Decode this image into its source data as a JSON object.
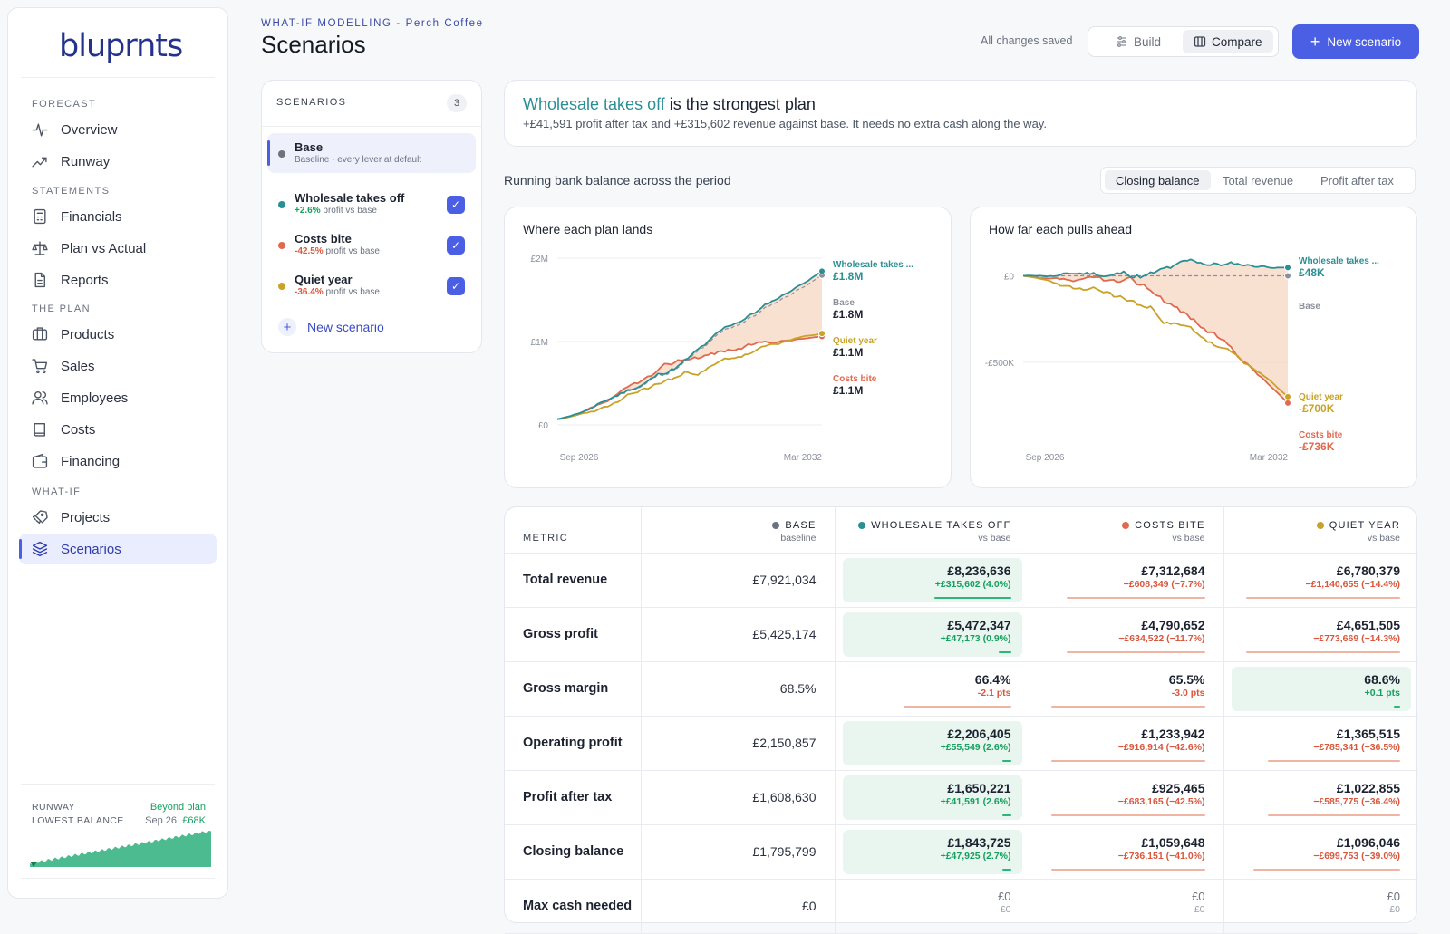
{
  "app": {
    "logo": "bluprnts"
  },
  "sidebar": {
    "sections": [
      {
        "label": "FORECAST",
        "items": [
          {
            "label": "Overview",
            "icon": "activity-icon"
          },
          {
            "label": "Runway",
            "icon": "trend-up-icon"
          }
        ]
      },
      {
        "label": "STATEMENTS",
        "items": [
          {
            "label": "Financials",
            "icon": "calculator-icon"
          },
          {
            "label": "Plan vs Actual",
            "icon": "scale-icon"
          },
          {
            "label": "Reports",
            "icon": "document-icon"
          }
        ]
      },
      {
        "label": "THE PLAN",
        "items": [
          {
            "label": "Products",
            "icon": "box-icon"
          },
          {
            "label": "Sales",
            "icon": "cart-icon"
          },
          {
            "label": "Employees",
            "icon": "users-icon"
          },
          {
            "label": "Costs",
            "icon": "book-icon"
          },
          {
            "label": "Financing",
            "icon": "wallet-icon"
          }
        ]
      },
      {
        "label": "WHAT-IF",
        "items": [
          {
            "label": "Projects",
            "icon": "rocket-icon"
          },
          {
            "label": "Scenarios",
            "icon": "layers-icon",
            "active": true
          }
        ]
      }
    ],
    "runway": {
      "label": "RUNWAY",
      "value": "Beyond plan",
      "lowest_label": "LOWEST BALANCE",
      "lowest_date": "Sep 26",
      "lowest_value": "£68K",
      "color": "#2fb47a"
    }
  },
  "header": {
    "eyebrow": "WHAT-IF MODELLING - Perch Coffee",
    "title": "Scenarios",
    "saved": "All changes saved",
    "build": "Build",
    "compare": "Compare",
    "new_scenario": "New scenario"
  },
  "scenarios": {
    "title": "SCENARIOS",
    "count": "3",
    "base": {
      "name": "Base",
      "sub": "Baseline · every lever at default",
      "color": "#6b7280"
    },
    "items": [
      {
        "name": "Wholesale takes off",
        "delta": "+2.6%",
        "sub": "profit vs base",
        "color": "#2a8f95",
        "dir": "pos"
      },
      {
        "name": "Costs bite",
        "delta": "-42.5%",
        "sub": "profit vs base",
        "color": "#e06a4e",
        "dir": "neg"
      },
      {
        "name": "Quiet year",
        "delta": "-36.4%",
        "sub": "profit vs base",
        "color": "#c9a227",
        "dir": "neg"
      }
    ],
    "new_label": "New scenario"
  },
  "banner": {
    "highlight": "Wholesale takes off",
    "rest": " is the strongest plan",
    "sub": "+£41,591 profit after tax and +£315,602 revenue against base. It needs no extra cash along the way."
  },
  "charts": {
    "caption": "Running bank balance across the period",
    "tabs": [
      "Closing balance",
      "Total revenue",
      "Profit after tax"
    ],
    "left": {
      "title": "Where each plan lands",
      "y_ticks": [
        "£2M",
        "£1M",
        "£0"
      ],
      "x_ticks": [
        "Sep 2026",
        "Mar 2032"
      ],
      "labels": [
        {
          "name": "Wholesale takes ...",
          "value": "£1.8M",
          "color": "#2a8f95"
        },
        {
          "name": "Base",
          "value": "£1.8M",
          "color": "#8b909c"
        },
        {
          "name": "Quiet year",
          "value": "£1.1M",
          "color": "#c9a227"
        },
        {
          "name": "Costs bite",
          "value": "£1.1M",
          "color": "#e06a4e"
        }
      ]
    },
    "right": {
      "title": "How far each pulls ahead",
      "y_ticks": [
        "£0",
        "-£500K"
      ],
      "x_ticks": [
        "Sep 2026",
        "Mar 2032"
      ],
      "labels": [
        {
          "name": "Wholesale takes ...",
          "value": "£48K",
          "color": "#2a8f95"
        },
        {
          "name": "Base",
          "value": "",
          "color": "#8b909c"
        },
        {
          "name": "Quiet year",
          "value": "-£700K",
          "color": "#c9a227"
        },
        {
          "name": "Costs bite",
          "value": "-£736K",
          "color": "#e06a4e"
        }
      ]
    }
  },
  "chart_data": [
    {
      "type": "line",
      "title": "Where each plan lands",
      "x": [
        "Sep 2026",
        "Mar 2032"
      ],
      "ylim": [
        0,
        2000000
      ],
      "series": [
        {
          "name": "Wholesale takes off",
          "values": [
            68000,
            1843725
          ]
        },
        {
          "name": "Base",
          "values": [
            68000,
            1795799
          ]
        },
        {
          "name": "Quiet year",
          "values": [
            68000,
            1096046
          ]
        },
        {
          "name": "Costs bite",
          "values": [
            68000,
            1059648
          ]
        }
      ]
    },
    {
      "type": "line",
      "title": "How far each pulls ahead",
      "x": [
        "Sep 2026",
        "Mar 2032"
      ],
      "ylim": [
        -800000,
        50000
      ],
      "series": [
        {
          "name": "Wholesale takes off",
          "values": [
            0,
            47925
          ]
        },
        {
          "name": "Base",
          "values": [
            0,
            0
          ]
        },
        {
          "name": "Quiet year",
          "values": [
            0,
            -699753
          ]
        },
        {
          "name": "Costs bite",
          "values": [
            0,
            -736151
          ]
        }
      ]
    }
  ],
  "table": {
    "metric_label": "METRIC",
    "columns": [
      {
        "name": "BASE",
        "sub": "baseline",
        "color": "#6b7280"
      },
      {
        "name": "WHOLESALE TAKES OFF",
        "sub": "vs base",
        "color": "#2a8f95"
      },
      {
        "name": "COSTS BITE",
        "sub": "vs base",
        "color": "#e06a4e"
      },
      {
        "name": "QUIET YEAR",
        "sub": "vs base",
        "color": "#c9a227"
      }
    ],
    "rows": [
      {
        "metric": "Total revenue",
        "base": "£7,921,034",
        "cells": [
          {
            "v": "£8,236,636",
            "d": "+£315,602 (4.0%)",
            "dir": "pos",
            "win": true,
            "bar": 0.5
          },
          {
            "v": "£7,312,684",
            "d": "−£608,349 (−7.7%)",
            "dir": "neg",
            "bar": 0.9
          },
          {
            "v": "£6,780,379",
            "d": "−£1,140,655 (−14.4%)",
            "dir": "neg",
            "bar": 1
          }
        ]
      },
      {
        "metric": "Gross profit",
        "base": "£5,425,174",
        "cells": [
          {
            "v": "£5,472,347",
            "d": "+£47,173 (0.9%)",
            "dir": "pos",
            "win": true,
            "bar": 0.08
          },
          {
            "v": "£4,790,652",
            "d": "−£634,522 (−11.7%)",
            "dir": "neg",
            "bar": 0.9
          },
          {
            "v": "£4,651,505",
            "d": "−£773,669 (−14.3%)",
            "dir": "neg",
            "bar": 1
          }
        ]
      },
      {
        "metric": "Gross margin",
        "base": "68.5%",
        "cells": [
          {
            "v": "66.4%",
            "d": "-2.1 pts",
            "dir": "neg",
            "bar": 0.7
          },
          {
            "v": "65.5%",
            "d": "-3.0 pts",
            "dir": "neg",
            "bar": 1
          },
          {
            "v": "68.6%",
            "d": "+0.1 pts",
            "dir": "pos",
            "win": true,
            "bar": 0.04
          }
        ]
      },
      {
        "metric": "Operating profit",
        "base": "£2,150,857",
        "cells": [
          {
            "v": "£2,206,405",
            "d": "+£55,549 (2.6%)",
            "dir": "pos",
            "win": true,
            "bar": 0.06
          },
          {
            "v": "£1,233,942",
            "d": "−£916,914 (−42.6%)",
            "dir": "neg",
            "bar": 1
          },
          {
            "v": "£1,365,515",
            "d": "−£785,341 (−36.5%)",
            "dir": "neg",
            "bar": 0.86
          }
        ]
      },
      {
        "metric": "Profit after tax",
        "base": "£1,608,630",
        "cells": [
          {
            "v": "£1,650,221",
            "d": "+£41,591 (2.6%)",
            "dir": "pos",
            "win": true,
            "bar": 0.06
          },
          {
            "v": "£925,465",
            "d": "−£683,165 (−42.5%)",
            "dir": "neg",
            "bar": 1
          },
          {
            "v": "£1,022,855",
            "d": "−£585,775 (−36.4%)",
            "dir": "neg",
            "bar": 0.86
          }
        ]
      },
      {
        "metric": "Closing balance",
        "base": "£1,795,799",
        "cells": [
          {
            "v": "£1,843,725",
            "d": "+£47,925 (2.7%)",
            "dir": "pos",
            "win": true,
            "bar": 0.06
          },
          {
            "v": "£1,059,648",
            "d": "−£736,151 (−41.0%)",
            "dir": "neg",
            "bar": 1
          },
          {
            "v": "£1,096,046",
            "d": "−£699,753 (−39.0%)",
            "dir": "neg",
            "bar": 0.95
          }
        ]
      },
      {
        "metric": "Max cash needed",
        "base": "£0",
        "cells": [
          {
            "v": "£0",
            "d": "£0",
            "dir": "neu"
          },
          {
            "v": "£0",
            "d": "£0",
            "dir": "neu"
          },
          {
            "v": "£0",
            "d": "£0",
            "dir": "neu"
          }
        ]
      }
    ]
  }
}
